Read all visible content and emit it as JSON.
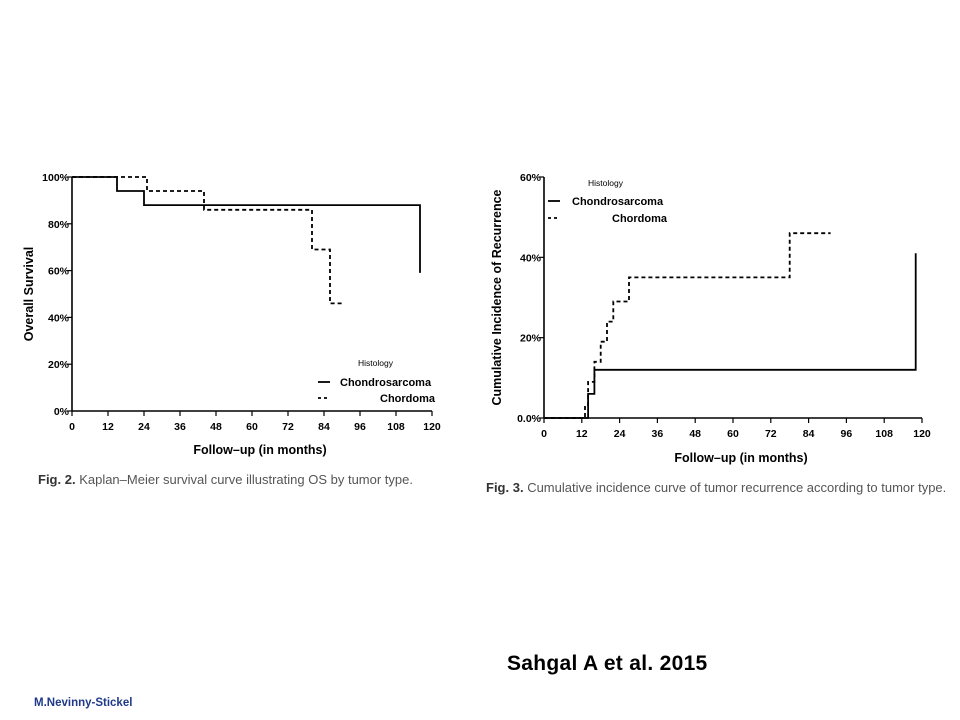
{
  "figures": [
    {
      "caption_label": "Fig. 2.",
      "caption_text": "Kaplan–Meier survival curve illustrating OS by tumor type."
    },
    {
      "caption_label": "Fig. 3.",
      "caption_text": "Cumulative incidence curve of tumor recurrence according to tumor type."
    }
  ],
  "chart_data": [
    {
      "type": "line",
      "subtype": "step",
      "xlabel": "Follow–up (in months)",
      "ylabel": "Overall Survival",
      "xlim": [
        0,
        120
      ],
      "ylim": [
        0,
        100
      ],
      "x_ticks": [
        "0",
        "12",
        "24",
        "36",
        "48",
        "60",
        "72",
        "84",
        "96",
        "108",
        "120"
      ],
      "y_ticks": [
        "0%",
        "20%",
        "40%",
        "60%",
        "80%",
        "100%"
      ],
      "grid": false,
      "legend_title": "Histology",
      "legend_position": "bottom-right",
      "series": [
        {
          "name": "Chondrosarcoma",
          "style": "solid",
          "x": [
            0,
            15,
            15,
            24,
            24,
            116,
            116
          ],
          "y": [
            100,
            100,
            94,
            94,
            88,
            88,
            59
          ]
        },
        {
          "name": "Chordoma",
          "style": "dashed",
          "x": [
            0,
            25,
            25,
            44,
            44,
            80,
            80,
            86,
            86,
            90
          ],
          "y": [
            100,
            100,
            94,
            94,
            86,
            86,
            69,
            69,
            46,
            46
          ]
        }
      ]
    },
    {
      "type": "line",
      "subtype": "step",
      "xlabel": "Follow–up (in months)",
      "ylabel": "Cumulative Incidence of Recurrence",
      "xlim": [
        0,
        120
      ],
      "ylim": [
        0,
        60
      ],
      "x_ticks": [
        "0",
        "12",
        "24",
        "36",
        "48",
        "60",
        "72",
        "84",
        "96",
        "108",
        "120"
      ],
      "y_ticks": [
        "0.0%",
        "20%",
        "40%",
        "60%"
      ],
      "grid": false,
      "legend_title": "Histology",
      "legend_position": "top-left",
      "series": [
        {
          "name": "Chondrosarcoma",
          "style": "solid",
          "x": [
            0,
            14,
            14,
            16,
            16,
            118,
            118
          ],
          "y": [
            0,
            0,
            6,
            6,
            12,
            12,
            41
          ]
        },
        {
          "name": "Chordoma",
          "style": "dashed",
          "x": [
            0,
            13,
            13,
            14,
            14,
            16,
            16,
            18,
            18,
            20,
            20,
            22,
            22,
            27,
            27,
            78,
            78,
            91
          ],
          "y": [
            0,
            0,
            3,
            3,
            9,
            9,
            14,
            14,
            19,
            19,
            24,
            24,
            29,
            29,
            35,
            35,
            46,
            46
          ]
        }
      ]
    }
  ],
  "citation": "Sahgal A et al. 2015",
  "author": "M.Nevinny-Stickel"
}
